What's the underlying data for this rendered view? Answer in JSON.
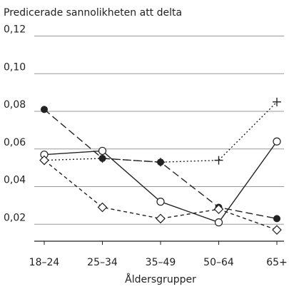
{
  "chart_data": {
    "type": "line",
    "title": "Predicerade sannolikheten att delta",
    "x_label": "Åldersgrupper",
    "categories": [
      "18–24",
      "25–34",
      "35–49",
      "50–64",
      "65+"
    ],
    "ylim": [
      0.011,
      0.124
    ],
    "yticks": [
      {
        "value": 0.02,
        "label": "0,02"
      },
      {
        "value": 0.04,
        "label": "0,04"
      },
      {
        "value": 0.06,
        "label": "0,06"
      },
      {
        "value": 0.08,
        "label": "0,08"
      },
      {
        "value": 0.1,
        "label": "0,10"
      },
      {
        "value": 0.12,
        "label": "0,12"
      }
    ],
    "grid": true,
    "series": [
      {
        "color": "#222222",
        "marker": "open-circle",
        "dash": "solid",
        "values": [
          0.057,
          0.059,
          0.032,
          0.021,
          0.064
        ]
      },
      {
        "color": "#222222",
        "marker": "filled-circle",
        "dash": "long",
        "values": [
          0.081,
          0.055,
          0.053,
          0.029,
          0.023
        ]
      },
      {
        "color": "#222222",
        "marker": "plus",
        "dash": "dotted",
        "values": [
          0.054,
          0.055,
          0.053,
          0.054,
          0.085
        ]
      },
      {
        "color": "#222222",
        "marker": "diamond",
        "dash": "short",
        "values": [
          0.054,
          0.029,
          0.023,
          0.028,
          0.017
        ]
      }
    ]
  }
}
